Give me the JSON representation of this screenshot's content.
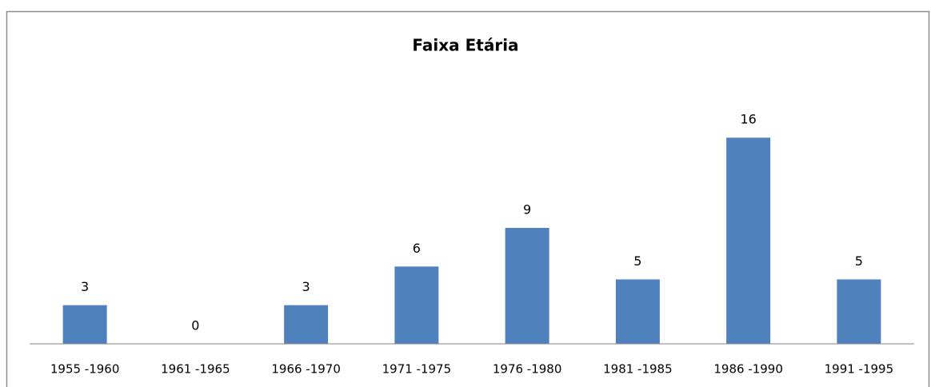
{
  "chart_data": {
    "type": "bar",
    "title": "Faixa Etária",
    "categories": [
      "1955 -1960",
      "1961 -1965",
      "1966 -1970",
      "1971 -1975",
      "1976 -1980",
      "1981 -1985",
      "1986 -1990",
      "1991 -1995"
    ],
    "values": [
      3,
      0,
      3,
      6,
      9,
      5,
      16,
      5
    ],
    "color": "#4f81bd",
    "ylim": [
      0,
      18
    ]
  }
}
